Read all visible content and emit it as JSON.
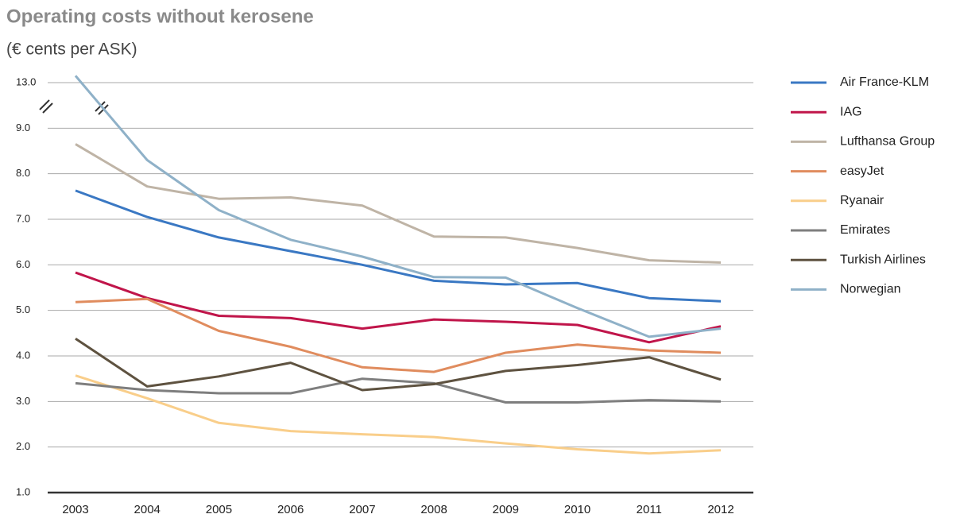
{
  "chart_data": {
    "type": "line",
    "title": "Operating costs without kerosene",
    "subtitle": "(€ cents per ASK)",
    "categories": [
      "2003",
      "2004",
      "2005",
      "2006",
      "2007",
      "2008",
      "2009",
      "2010",
      "2011",
      "2012"
    ],
    "series": [
      {
        "name": "Air France-KLM",
        "color": "#3a78c3",
        "values": [
          7.63,
          7.05,
          6.6,
          6.3,
          6.0,
          5.65,
          5.57,
          5.6,
          5.27,
          5.2
        ]
      },
      {
        "name": "IAG",
        "color": "#c0154a",
        "values": [
          5.83,
          5.27,
          4.88,
          4.83,
          4.6,
          4.8,
          4.75,
          4.68,
          4.3,
          4.65
        ]
      },
      {
        "name": "Lufthansa Group",
        "color": "#bfb4a6",
        "values": [
          8.65,
          7.72,
          7.45,
          7.48,
          7.3,
          6.62,
          6.6,
          6.37,
          6.1,
          6.05
        ]
      },
      {
        "name": "easyJet",
        "color": "#e08c5e",
        "values": [
          5.18,
          5.25,
          4.55,
          4.2,
          3.75,
          3.65,
          4.07,
          4.25,
          4.12,
          4.07
        ]
      },
      {
        "name": "Ryanair",
        "color": "#f9ce8a",
        "values": [
          3.57,
          3.07,
          2.53,
          2.35,
          2.28,
          2.22,
          2.08,
          1.95,
          1.86,
          1.93
        ]
      },
      {
        "name": "Emirates",
        "color": "#7e7e7e",
        "values": [
          3.4,
          3.25,
          3.18,
          3.18,
          3.5,
          3.4,
          2.98,
          2.98,
          3.03,
          3.0
        ]
      },
      {
        "name": "Turkish Airlines",
        "color": "#5e5240",
        "values": [
          4.38,
          3.33,
          3.55,
          3.85,
          3.25,
          3.38,
          3.67,
          3.8,
          3.97,
          3.48
        ]
      },
      {
        "name": "Norwegian",
        "color": "#8fb1c8",
        "values": [
          13.15,
          8.3,
          7.2,
          6.55,
          6.18,
          5.73,
          5.72,
          5.05,
          4.42,
          4.6
        ]
      }
    ],
    "ylim": [
      1,
      13
    ],
    "yticks": [
      {
        "value": 1,
        "label": "1.0"
      },
      {
        "value": 2,
        "label": "2.0"
      },
      {
        "value": 3,
        "label": "3.0"
      },
      {
        "value": 4,
        "label": "4.0"
      },
      {
        "value": 5,
        "label": "5.0"
      },
      {
        "value": 6,
        "label": "6.0"
      },
      {
        "value": 7,
        "label": "7.0"
      },
      {
        "value": 8,
        "label": "8.0"
      },
      {
        "value": 9,
        "label": "9.0"
      },
      {
        "value": 13,
        "label": "13.0"
      }
    ],
    "grid": true,
    "legend": "right"
  }
}
